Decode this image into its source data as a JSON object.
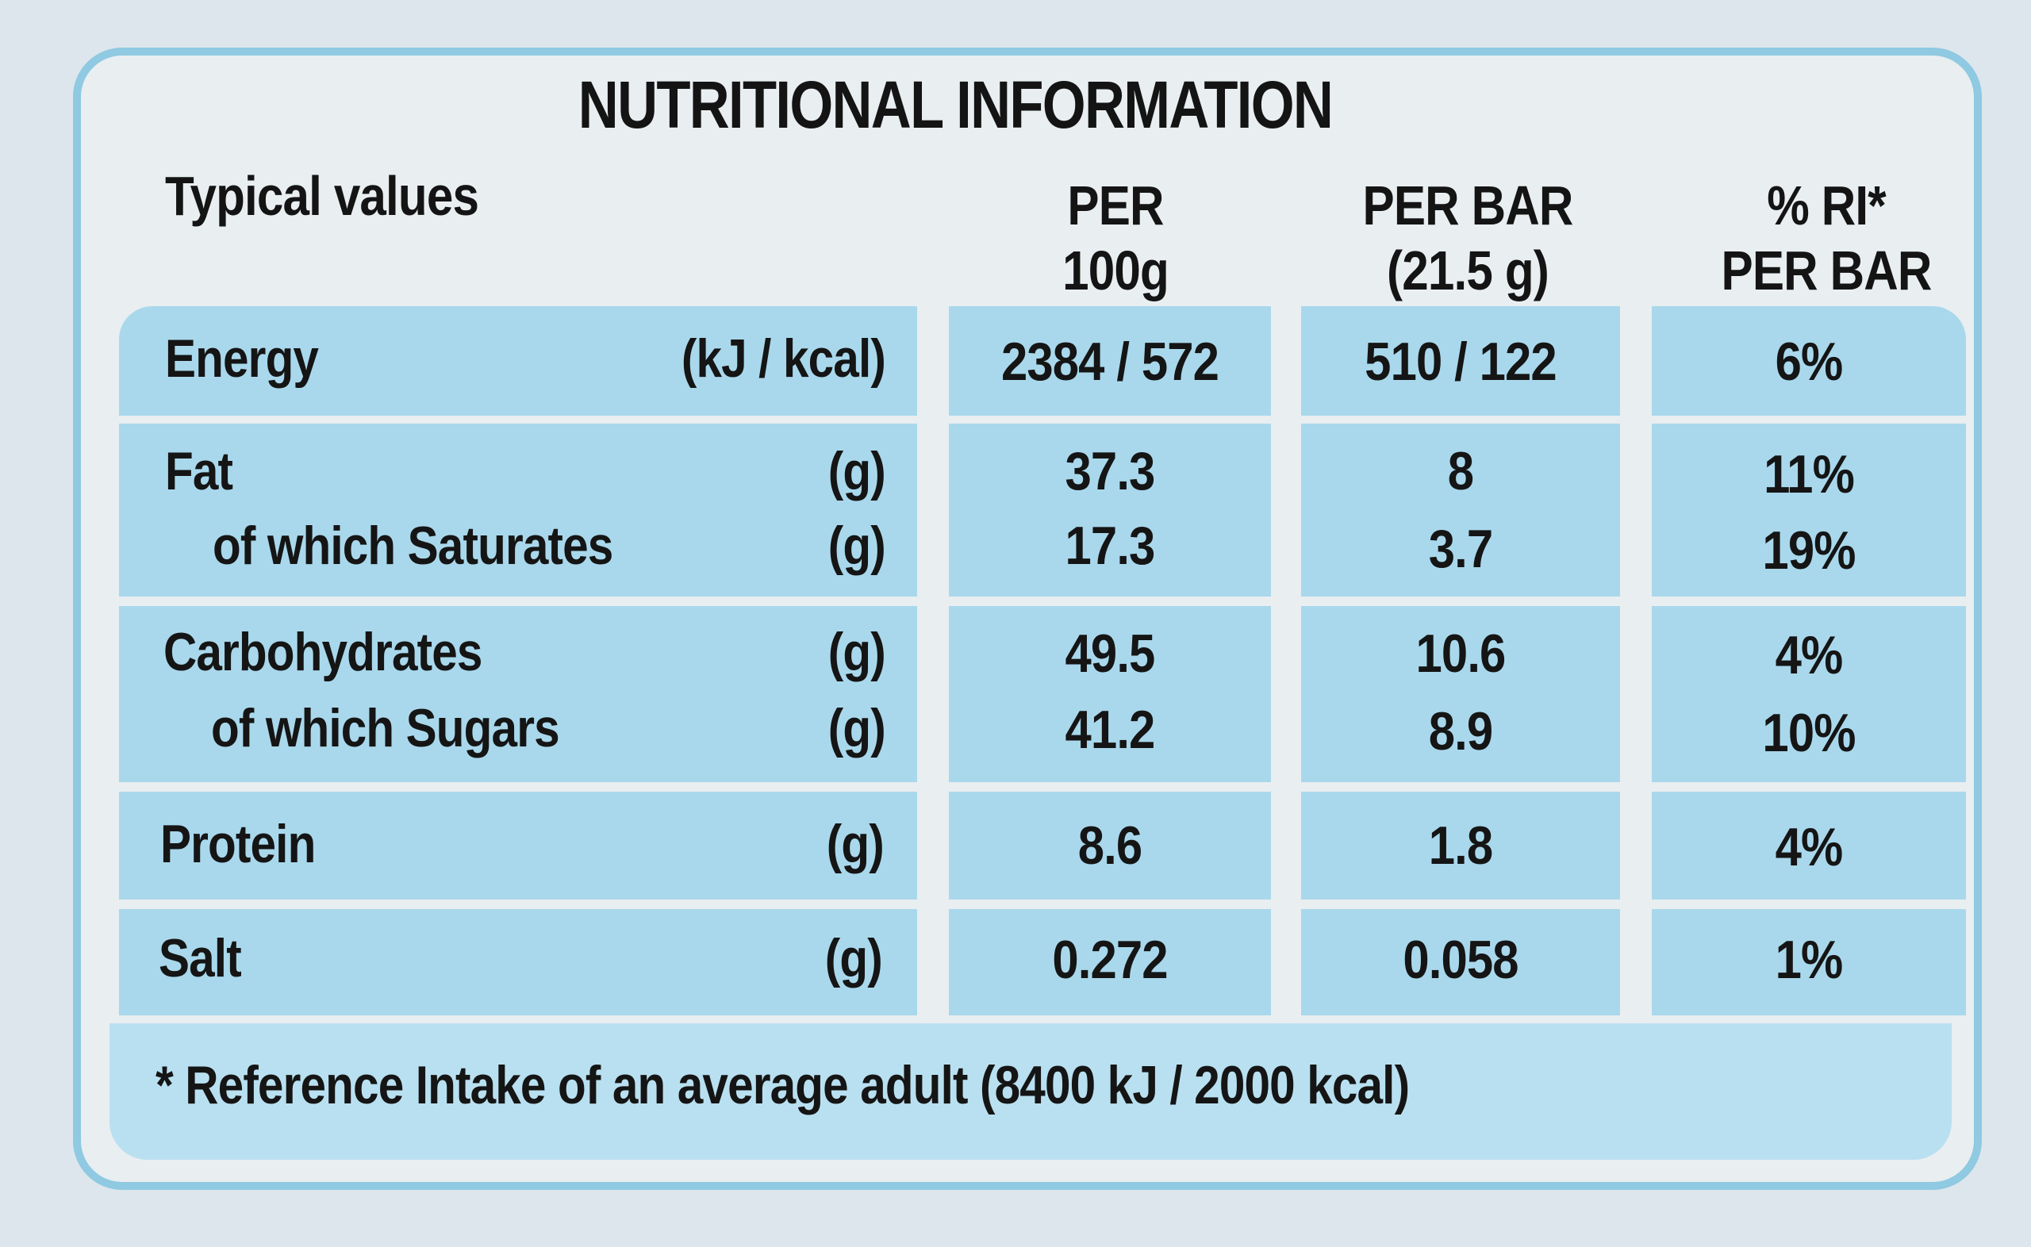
{
  "title": "NUTRITIONAL INFORMATION",
  "headers": {
    "typical": "Typical values",
    "per100_line1": "PER",
    "per100_line2": "100g",
    "perbar_line1": "PER BAR",
    "perbar_line2": "(21.5 g)",
    "ri_line1": "% RI*",
    "ri_line2": "PER BAR"
  },
  "rows": [
    {
      "label": "Energy",
      "unit": "(kJ / kcal)",
      "per100": "2384 / 572",
      "perbar": "510 / 122",
      "ri": "6%"
    },
    {
      "label": "Fat",
      "unit": "(g)",
      "per100": "37.3",
      "perbar": "8",
      "ri": "11%"
    },
    {
      "label": "of which Saturates",
      "unit": "(g)",
      "per100": "17.3",
      "perbar": "3.7",
      "ri": "19%"
    },
    {
      "label": "Carbohydrates",
      "unit": "(g)",
      "per100": "49.5",
      "perbar": "10.6",
      "ri": "4%"
    },
    {
      "label": "of which Sugars",
      "unit": "(g)",
      "per100": "41.2",
      "perbar": "8.9",
      "ri": "10%"
    },
    {
      "label": "Protein",
      "unit": "(g)",
      "per100": "8.6",
      "perbar": "1.8",
      "ri": "4%"
    },
    {
      "label": "Salt",
      "unit": "(g)",
      "per100": "0.272",
      "perbar": "0.058",
      "ri": "1%"
    }
  ],
  "footnote": "* Reference Intake of an average adult (8400 kJ / 2000 kcal)",
  "colors": {
    "cell": "#a9d8ec",
    "border": "#8fc9e2",
    "background": "#e9eef1",
    "text": "#151515"
  }
}
